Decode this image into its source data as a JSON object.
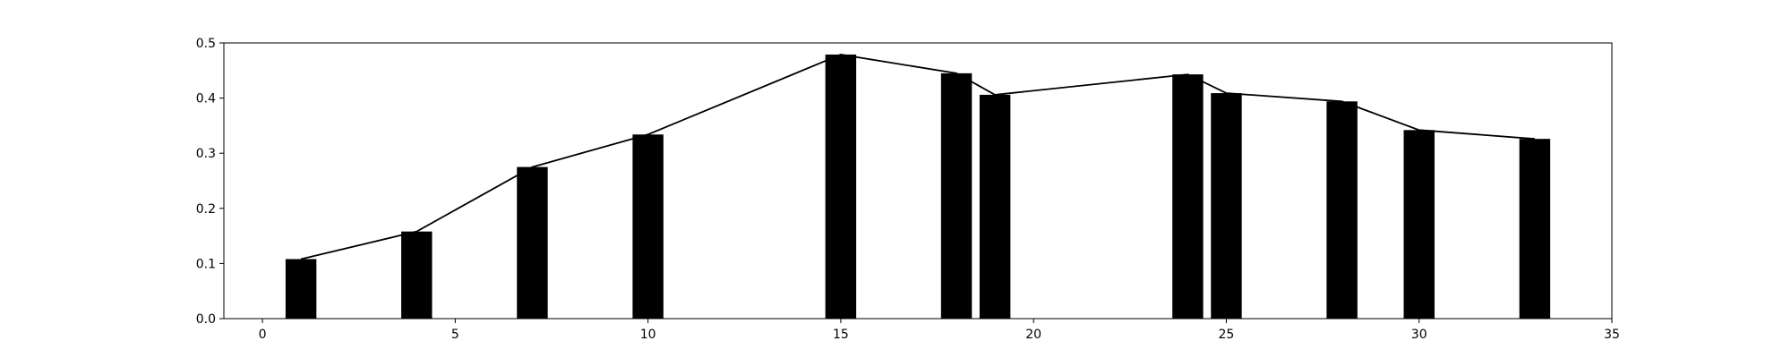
{
  "chart_data": {
    "type": "bar",
    "title": "",
    "xlabel": "",
    "ylabel": "",
    "x": [
      1,
      4,
      7,
      10,
      15,
      18,
      19,
      24,
      25,
      28,
      30,
      33
    ],
    "values": [
      0.108,
      0.158,
      0.275,
      0.334,
      0.479,
      0.445,
      0.406,
      0.443,
      0.409,
      0.394,
      0.342,
      0.326
    ],
    "overlay_line": true,
    "xlim": [
      -1,
      35
    ],
    "ylim": [
      0,
      0.5
    ],
    "xticks": [
      0,
      5,
      10,
      15,
      20,
      25,
      30,
      35
    ],
    "yticks": [
      0.0,
      0.1,
      0.2,
      0.3,
      0.4,
      0.5
    ],
    "xtick_labels": [
      "0",
      "5",
      "10",
      "15",
      "20",
      "25",
      "30",
      "35"
    ],
    "ytick_labels": [
      "0.0",
      "0.1",
      "0.2",
      "0.3",
      "0.4",
      "0.5"
    ],
    "grid": false,
    "colors": {
      "bar": "#000000",
      "line": "#000000"
    }
  }
}
